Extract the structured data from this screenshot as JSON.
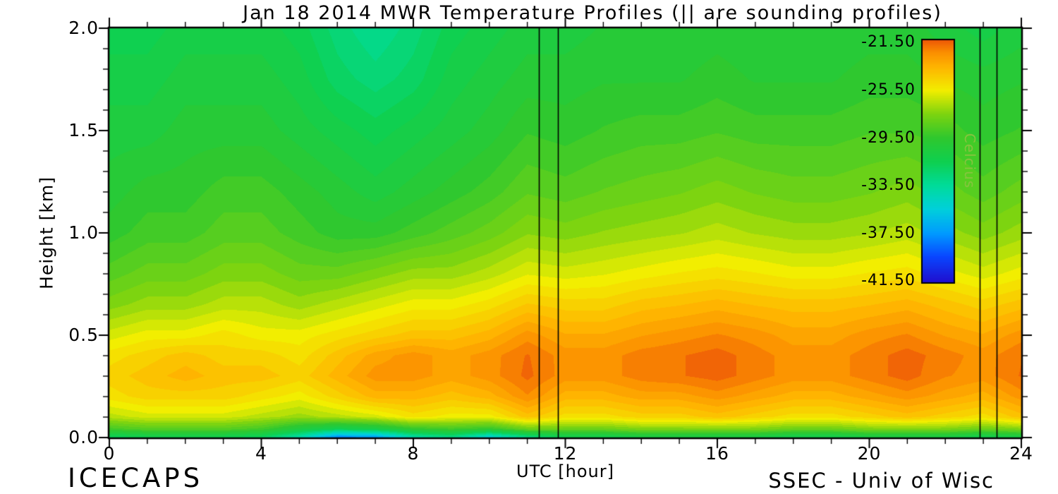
{
  "chart_data": {
    "type": "heatmap",
    "title": "Jan 18 2014 MWR Temperature Profiles (|| are sounding profiles)",
    "xlabel": "UTC [hour]",
    "ylabel": "Height [km]",
    "xlim": [
      0,
      24
    ],
    "ylim": [
      0,
      2
    ],
    "grid": false,
    "contour_interval_c": 0.5,
    "xticks": {
      "values": [
        0,
        4,
        8,
        12,
        16,
        20,
        24
      ],
      "labels": [
        "0",
        "4",
        "8",
        "12",
        "16",
        "20",
        "24"
      ],
      "minor_step": 1
    },
    "yticks": {
      "values": [
        0,
        0.5,
        1,
        1.5,
        2
      ],
      "labels": [
        "0.0",
        "0.5",
        "1.0",
        "1.5",
        "2.0"
      ],
      "minor_step": 0.1
    },
    "x_utc_hours": [
      0,
      1,
      2,
      3,
      4,
      5,
      6,
      7,
      8,
      9,
      10,
      11,
      12,
      13,
      14,
      15,
      16,
      17,
      18,
      19,
      20,
      21,
      22,
      23,
      24
    ],
    "y_heights_km": [
      0.0,
      0.04,
      0.1,
      0.2,
      0.3,
      0.4,
      0.5,
      0.65,
      0.8,
      1.0,
      1.2,
      1.5,
      1.75,
      2.0
    ],
    "values_degC": [
      [
        -32,
        -31.5,
        -31.5,
        -31.5,
        -32,
        -34,
        -38,
        -37.5,
        -34,
        -33,
        -35.5,
        -33,
        -31.5,
        -31.5,
        -31,
        -31,
        -31,
        -31,
        -31.5,
        -31.5,
        -31,
        -31,
        -31,
        -31.5,
        -31
      ],
      [
        -29,
        -28.5,
        -28.5,
        -28.5,
        -29,
        -30.5,
        -31.5,
        -31,
        -29.5,
        -29,
        -29.5,
        -28,
        -28,
        -28,
        -27.5,
        -27.5,
        -27.5,
        -27.5,
        -28,
        -28,
        -27.5,
        -27.5,
        -27.5,
        -28,
        -27.5
      ],
      [
        -26.5,
        -26,
        -26,
        -26,
        -26.5,
        -27,
        -26.5,
        -26,
        -25,
        -25.5,
        -25.5,
        -24,
        -25,
        -25,
        -24.5,
        -24.5,
        -24,
        -24.5,
        -25,
        -25,
        -24.5,
        -24,
        -24.5,
        -25,
        -24
      ],
      [
        -25,
        -24.5,
        -24.5,
        -24.5,
        -25,
        -25.5,
        -24.5,
        -23.5,
        -23.5,
        -24,
        -23.5,
        -22.3,
        -23.5,
        -23.5,
        -23,
        -23,
        -22.5,
        -23,
        -23.5,
        -23.5,
        -23,
        -22.5,
        -23,
        -23.5,
        -22.5
      ],
      [
        -24.5,
        -24,
        -23.5,
        -24,
        -24,
        -24.5,
        -23.5,
        -22.5,
        -22.5,
        -23,
        -22.5,
        -21.6,
        -22.5,
        -22.5,
        -22,
        -21.8,
        -21.5,
        -22,
        -22.5,
        -22.5,
        -22,
        -21.5,
        -22.2,
        -22.5,
        -21.7
      ],
      [
        -25,
        -24.5,
        -24,
        -24.5,
        -24.5,
        -25,
        -24,
        -23,
        -22.5,
        -23,
        -22.5,
        -21.7,
        -22.5,
        -22.5,
        -22,
        -21.8,
        -21.5,
        -22,
        -22.5,
        -22.5,
        -22,
        -21.5,
        -22,
        -22.5,
        -21.8
      ],
      [
        -26,
        -25.5,
        -25.5,
        -25,
        -25.5,
        -25.5,
        -25,
        -24.5,
        -24,
        -24,
        -23.5,
        -22.5,
        -23.2,
        -23.2,
        -22.8,
        -22.5,
        -22.2,
        -22.5,
        -23,
        -23,
        -22.5,
        -22.2,
        -22.8,
        -23.2,
        -22.5
      ],
      [
        -27.5,
        -27,
        -27,
        -26.5,
        -26.5,
        -27,
        -26.5,
        -26,
        -25.5,
        -25.5,
        -25,
        -24.2,
        -24.5,
        -24.5,
        -24,
        -23.8,
        -23.5,
        -23.8,
        -24,
        -24,
        -23.8,
        -23.5,
        -24,
        -24.5,
        -24
      ],
      [
        -28.5,
        -28,
        -28,
        -27.5,
        -27.5,
        -28,
        -28,
        -27.5,
        -27,
        -27,
        -26.5,
        -25.8,
        -26,
        -25.8,
        -25.5,
        -25.2,
        -25,
        -25.2,
        -25.5,
        -25.5,
        -25.2,
        -25,
        -25.5,
        -26,
        -25.5
      ],
      [
        -29.5,
        -29,
        -29,
        -28.5,
        -28.5,
        -29,
        -29.5,
        -29.5,
        -29,
        -28.5,
        -28,
        -27.3,
        -27.5,
        -27.2,
        -27,
        -26.8,
        -26.5,
        -26.8,
        -27,
        -27,
        -26.8,
        -26.5,
        -27,
        -27.5,
        -27
      ],
      [
        -30,
        -29.5,
        -29.5,
        -29,
        -29,
        -29.5,
        -30,
        -30.5,
        -30,
        -29.5,
        -29,
        -28.3,
        -28.5,
        -28.2,
        -28,
        -27.8,
        -27.5,
        -27.8,
        -28,
        -28,
        -27.8,
        -27.5,
        -28,
        -28.5,
        -28
      ],
      [
        -30.5,
        -30.5,
        -30,
        -30,
        -30,
        -30.5,
        -31,
        -31.5,
        -31,
        -30.5,
        -30,
        -29.3,
        -29.5,
        -29.2,
        -29,
        -29,
        -28.8,
        -29,
        -29,
        -29,
        -28.8,
        -28.8,
        -29,
        -29.5,
        -29.2
      ],
      [
        -31,
        -31,
        -30.5,
        -30.5,
        -30.5,
        -31,
        -32,
        -32.5,
        -32,
        -31,
        -30.5,
        -30,
        -30,
        -29.8,
        -29.8,
        -29.8,
        -29.5,
        -29.8,
        -29.8,
        -29.8,
        -29.5,
        -29.5,
        -29.8,
        -30,
        -29.8
      ],
      [
        -31.5,
        -31.5,
        -31,
        -31,
        -31,
        -31.5,
        -32.5,
        -33.2,
        -32.5,
        -31.5,
        -31,
        -30.5,
        -30.5,
        -30.2,
        -30.2,
        -30.2,
        -30,
        -30.2,
        -30.2,
        -30.2,
        -30,
        -30,
        -30.5,
        -31,
        -30.5
      ]
    ],
    "sounding_lines_utc": [
      11.3,
      11.8,
      22.9,
      23.35
    ],
    "colorbar": {
      "title": "Celcius",
      "title_color": "#86c43e",
      "range": [
        -41.6,
        -21.3
      ],
      "tick_values": [
        -21.5,
        -25.5,
        -29.5,
        -33.5,
        -37.5,
        -41.5
      ],
      "tick_labels": [
        "-21.50",
        "-25.50",
        "-29.50",
        "-33.50",
        "-37.50",
        "-41.50"
      ],
      "colormap_stops": [
        [
          -41.6,
          "#2010d0"
        ],
        [
          -39.5,
          "#0a46ff"
        ],
        [
          -37.5,
          "#009cff"
        ],
        [
          -35.5,
          "#00d0dc"
        ],
        [
          -33.5,
          "#00dc9b"
        ],
        [
          -31.5,
          "#0fd050"
        ],
        [
          -29.5,
          "#2fc82f"
        ],
        [
          -27.5,
          "#7dd410"
        ],
        [
          -25.5,
          "#f2ee00"
        ],
        [
          -23.5,
          "#ffb400"
        ],
        [
          -22.3,
          "#fb8f00"
        ],
        [
          -21.3,
          "#ee5a07"
        ]
      ]
    },
    "annotations": {
      "bottom_left": "ICECAPS",
      "bottom_right": "SSEC - Univ of Wisc"
    },
    "axis_color": "#000000",
    "background": "#ffffff"
  }
}
